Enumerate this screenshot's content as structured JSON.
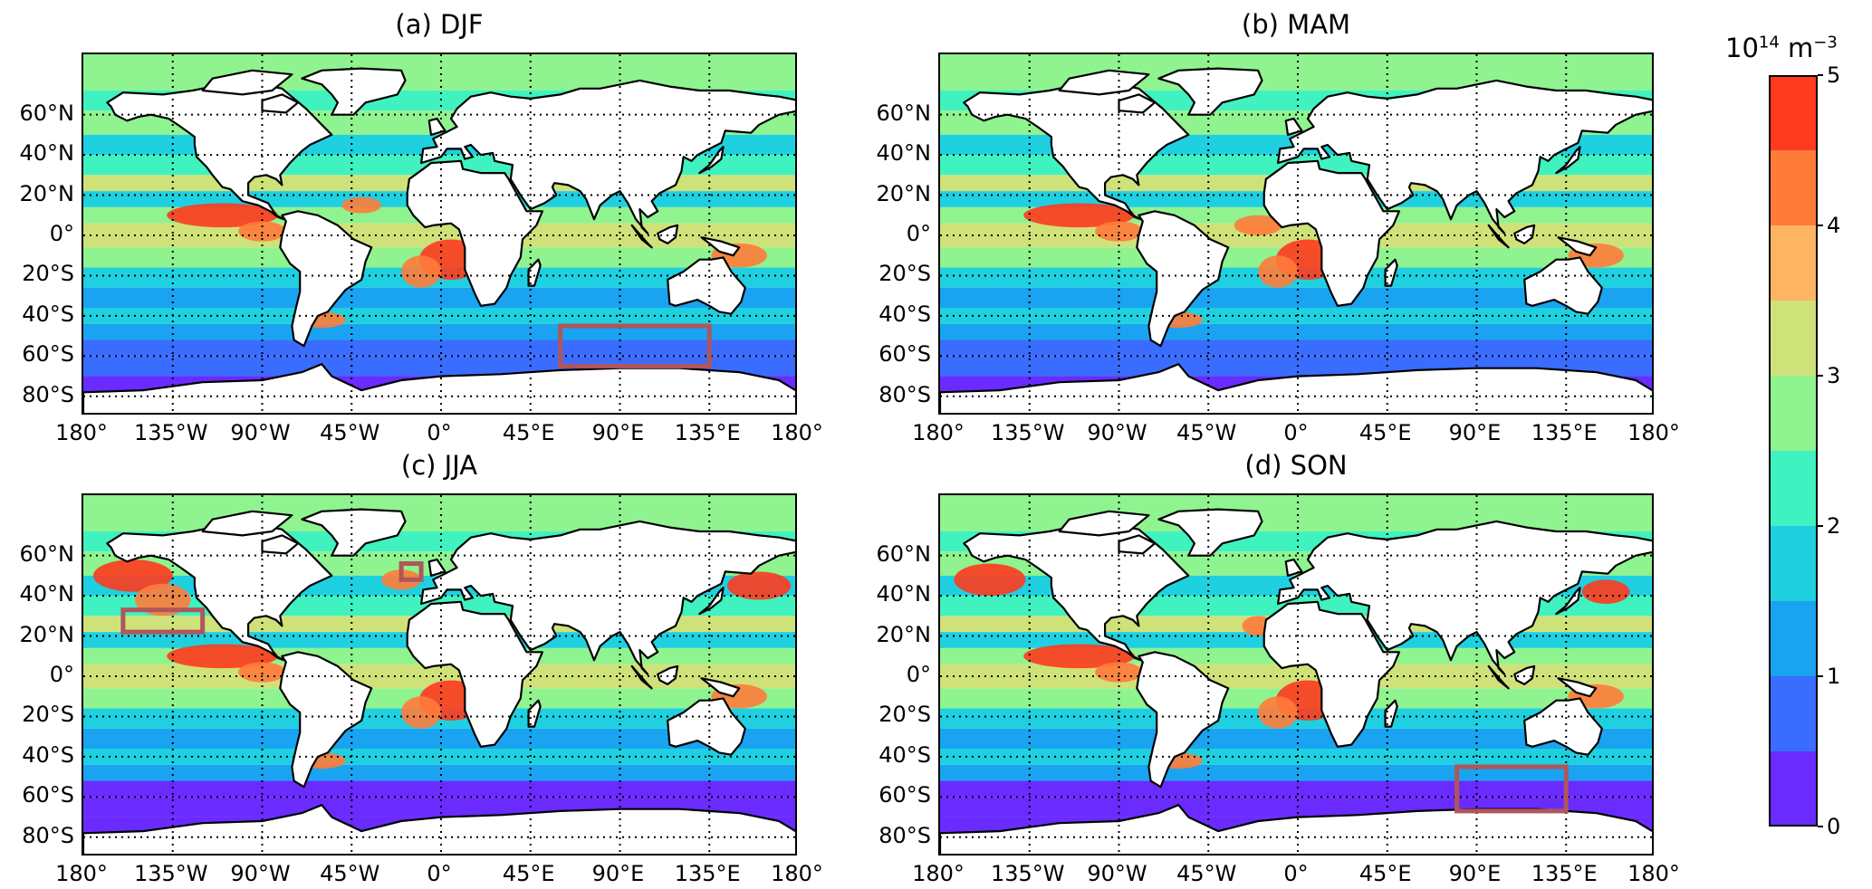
{
  "figure": {
    "panels": [
      {
        "id": "a",
        "title": "(a) DJF"
      },
      {
        "id": "b",
        "title": "(b) MAM"
      },
      {
        "id": "c",
        "title": "(c) JJA"
      },
      {
        "id": "d",
        "title": "(d) SON"
      }
    ],
    "lat_ticks": [
      "60°N",
      "40°N",
      "20°N",
      "0°",
      "20°S",
      "40°S",
      "60°S",
      "80°S"
    ],
    "lon_ticks": [
      "180°",
      "135°W",
      "90°W",
      "45°W",
      "0°",
      "45°E",
      "90°E",
      "135°E",
      "180°"
    ],
    "colorbar": {
      "unit_base": "10",
      "unit_exp": "14",
      "unit_rest": " m",
      "unit_rest_exp": "−3",
      "ticks": [
        "5",
        "4",
        "3",
        "2",
        "1",
        "0"
      ],
      "colors": [
        "#6a2bff",
        "#3a6cff",
        "#1aa3f0",
        "#1fd0e0",
        "#3ff2c0",
        "#8ff38f",
        "#cfe27a",
        "#ffb462",
        "#ff7b3a",
        "#ff3a1e"
      ]
    },
    "region_boxes": {
      "a": [
        "Southern Indian Ocean, 60°E–135°E, 45°S–65°S"
      ],
      "c": [
        "North Pacific, 160°W–120°W, 22°N–33°N",
        "North Atlantic, 20°W–10°W, 48°N–56°N"
      ],
      "d": [
        "Southern Indian Ocean, 80°E–135°E, 45°S–67°S"
      ]
    },
    "box_color": "#b0565a"
  }
}
